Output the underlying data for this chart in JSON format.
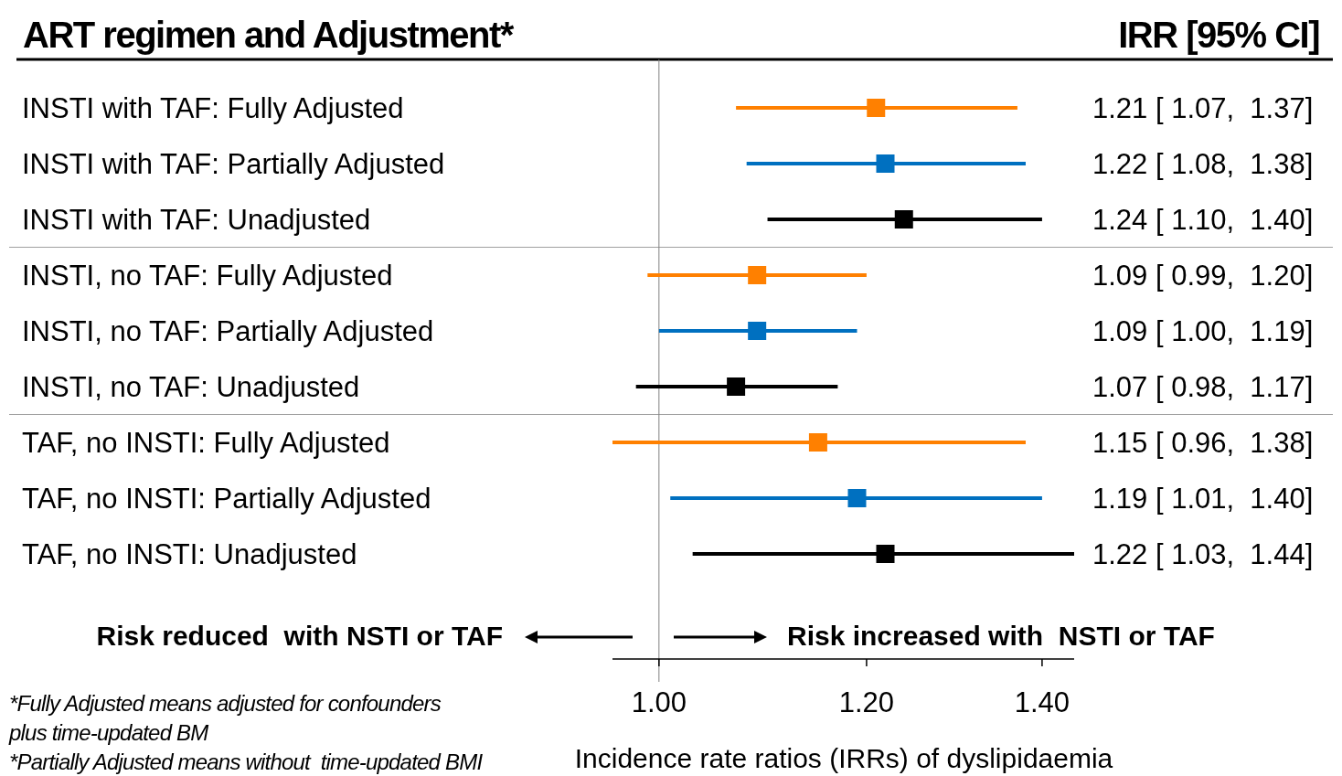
{
  "chart_data": {
    "type": "scatter",
    "orientation": "horizontal",
    "title": "ART regimen and Adjustment*",
    "xlabel": "Incidence rate ratios (IRRs) of dyslipidaemia",
    "categories": [
      "INSTI with TAF: Fully Adjusted",
      "INSTI with TAF: Partially Adjusted",
      "INSTI with TAF: Unadjusted",
      "INSTI, no TAF: Fully Adjusted",
      "INSTI, no TAF: Partially Adjusted",
      "INSTI, no TAF: Unadjusted",
      "TAF, no INSTI: Fully Adjusted",
      "TAF, no INSTI: Partially Adjusted",
      "TAF, no INSTI: Unadjusted"
    ],
    "values": [
      1.21,
      1.22,
      1.24,
      1.09,
      1.09,
      1.07,
      1.15,
      1.19,
      1.22
    ],
    "colors": [
      "#ff8000",
      "#0070c0",
      "#000000",
      "#ff8000",
      "#0070c0",
      "#000000",
      "#ff8000",
      "#0070c0",
      "#000000"
    ],
    "errors": [
      [
        1.07,
        1.37
      ],
      [
        1.08,
        1.38
      ],
      [
        1.1,
        1.4
      ],
      [
        0.99,
        1.2
      ],
      [
        1.0,
        1.19
      ],
      [
        0.98,
        1.17
      ],
      [
        0.96,
        1.38
      ],
      [
        1.01,
        1.4
      ],
      [
        1.03,
        1.44
      ]
    ],
    "value_labels": [
      "1.21 [ 1.07,  1.37]",
      "1.22 [ 1.08,  1.38]",
      "1.24 [ 1.10,  1.40]",
      "1.09 [ 0.99,  1.20]",
      "1.09 [ 1.00,  1.19]",
      "1.07 [ 0.98,  1.17]",
      "1.15 [ 0.96,  1.38]",
      "1.19 [ 1.01,  1.40]",
      "1.22 [ 1.03,  1.44]"
    ],
    "xlim": [
      0.96,
      1.44
    ],
    "xticks": [
      {
        "value": 1,
        "label": "1.00"
      },
      {
        "value": 1.2,
        "label": "1.20"
      },
      {
        "value": 1.4,
        "label": "1.40"
      }
    ],
    "log": "x",
    "marker": "square",
    "ref_lines": [
      {
        "axis": "x",
        "value": 1,
        "color": "#808080"
      }
    ],
    "annotations": [
      "IRR [95% CI]",
      "Risk reduced  with NSTI or TAF",
      "Risk increased with  NSTI or TAF",
      "*Fully Adjusted means adjusted for confounders",
      "plus time-updated BM",
      "*Partially Adjusted means without  time-updated BMI"
    ]
  }
}
